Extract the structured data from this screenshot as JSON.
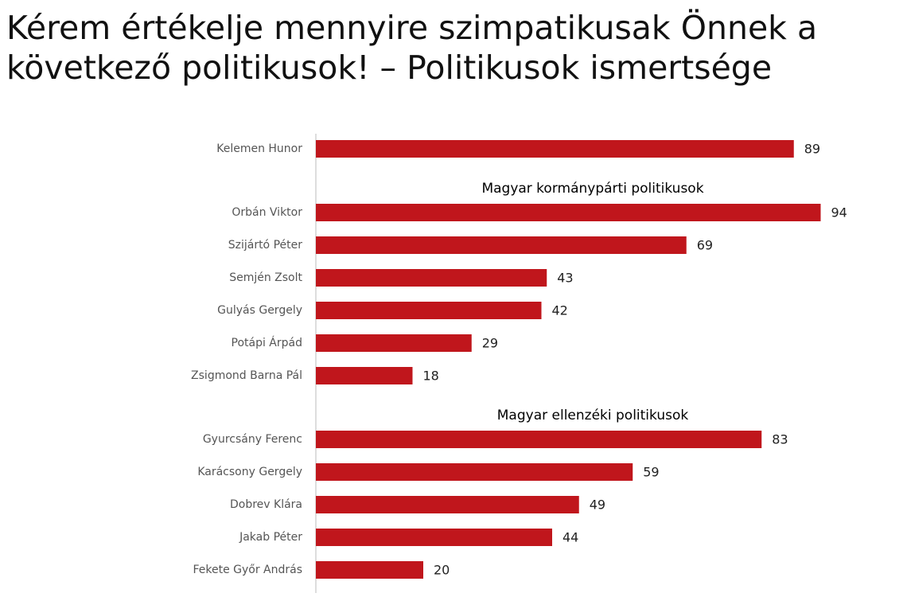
{
  "chart_data": {
    "type": "bar",
    "orientation": "horizontal",
    "title": "Kérem értékelje mennyire szimpatikusak Önnek a következő politikusok! – Politikusok ismertsége",
    "color": "#c0161c",
    "xlim": [
      0,
      100
    ],
    "groups": [
      {
        "categories": [
          "Kelemen Hunor"
        ],
        "values": [
          89
        ]
      },
      {
        "title": "Magyar kormánypárti politikusok",
        "categories": [
          "Orbán Viktor",
          "Szijártó Péter",
          "Semjén Zsolt",
          "Gulyás Gergely",
          "Potápi Árpád",
          "Zsigmond Barna Pál"
        ],
        "values": [
          94,
          69,
          43,
          42,
          29,
          18
        ]
      },
      {
        "title": "Magyar ellenzéki politikusok",
        "categories": [
          "Gyurcsány Ferenc",
          "Karácsony Gergely",
          "Dobrev Klára",
          "Jakab Péter",
          "Fekete Győr András"
        ],
        "values": [
          83,
          59,
          49,
          44,
          20
        ]
      }
    ]
  }
}
